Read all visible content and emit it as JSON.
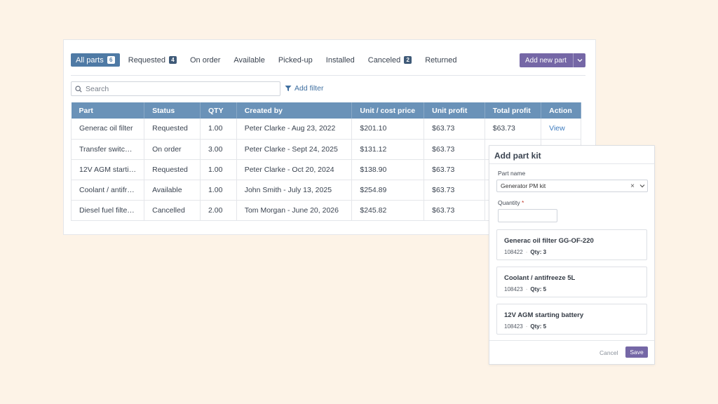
{
  "tabs": [
    {
      "label": "All parts",
      "badge": "6"
    },
    {
      "label": "Requested",
      "badge": "4"
    },
    {
      "label": "On order",
      "badge": ""
    },
    {
      "label": "Available",
      "badge": ""
    },
    {
      "label": "Picked-up",
      "badge": ""
    },
    {
      "label": "Installed",
      "badge": ""
    },
    {
      "label": "Canceled",
      "badge": "2"
    },
    {
      "label": "Returned",
      "badge": ""
    }
  ],
  "toolbar": {
    "add_new_part_label": "Add new part",
    "add_filter_label": "Add filter"
  },
  "search": {
    "placeholder": "Search"
  },
  "table": {
    "headers": [
      "Part",
      "Status",
      "QTY",
      "Created by",
      "Unit / cost price",
      "Unit profit",
      "Total profit",
      "Action"
    ],
    "rows": [
      [
        "Generac oil filter",
        "Requested",
        "1.00",
        "Peter Clarke - Aug 23, 2022",
        "$201.10",
        "$63.73",
        "$63.73",
        "View"
      ],
      [
        "Transfer switc…",
        "On order",
        "3.00",
        "Peter Clarke - Sept 24, 2025",
        "$131.12",
        "$63.73",
        "",
        ""
      ],
      [
        "12V AGM starti…",
        "Requested",
        "1.00",
        "Peter Clarke - Oct 20, 2024",
        "$138.90",
        "$63.73",
        "",
        ""
      ],
      [
        "Coolant / antifr…",
        "Available",
        "1.00",
        "John Smith - July 13, 2025",
        "$254.89",
        "$63.73",
        "",
        ""
      ],
      [
        "Diesel fuel filte…",
        "Cancelled",
        "2.00",
        "Tom Morgan - June 20, 2026",
        "$245.82",
        "$63.73",
        "",
        ""
      ]
    ]
  },
  "panel": {
    "title": "Add part kit",
    "part_name_label": "Part name",
    "part_name_value": "Generator PM kit",
    "quantity_label": "Quantity",
    "required_mark": "*",
    "items": [
      {
        "name": "Generac oil filter GG-OF-220",
        "sku": "108422",
        "qty": "Qty: 3"
      },
      {
        "name": "Coolant / antifreeze 5L",
        "sku": "108423",
        "qty": "Qty: 5"
      },
      {
        "name": "12V AGM starting battery",
        "sku": "108423",
        "qty": "Qty: 5"
      }
    ],
    "cancel_label": "Cancel",
    "save_label": "Save"
  },
  "colors": {
    "accent": "#7567a6",
    "header": "#6a92b8",
    "active_tab": "#4f7aa5",
    "background": "#fdf3e7"
  }
}
